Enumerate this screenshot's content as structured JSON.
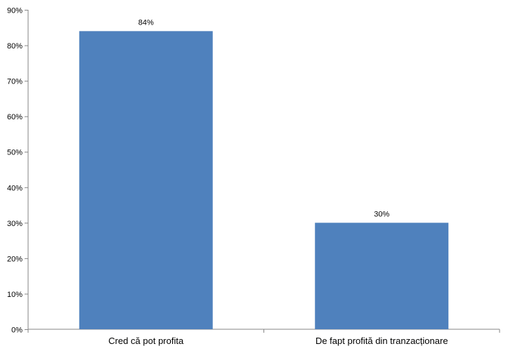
{
  "chart_data": {
    "type": "bar",
    "title": "",
    "xlabel": "",
    "ylabel": "",
    "categories": [
      "Cred că pot profita",
      "De fapt profită din tranzacționare"
    ],
    "values": [
      84,
      30
    ],
    "value_labels": [
      "84%",
      "30%"
    ],
    "ylim": [
      0,
      90
    ],
    "yticks": [
      0,
      10,
      20,
      30,
      40,
      50,
      60,
      70,
      80,
      90
    ],
    "ytick_labels": [
      "0%",
      "10%",
      "20%",
      "30%",
      "40%",
      "50%",
      "60%",
      "70%",
      "80%",
      "90%"
    ],
    "grid": false,
    "legend": "none",
    "bar_color": "#4f81bd",
    "axis_color": "#868686"
  }
}
